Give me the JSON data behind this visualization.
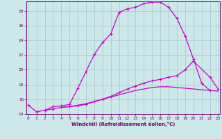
{
  "xlabel": "Windchill (Refroidissement éolien,°C)",
  "bg_color": "#cce8e8",
  "grid_color": "#aacccc",
  "line_color": "#cc00cc",
  "xmin": 0,
  "xmax": 23,
  "ymin": 14,
  "ymax": 29,
  "yticks": [
    14,
    16,
    18,
    20,
    22,
    24,
    26,
    28
  ],
  "xticks": [
    0,
    1,
    2,
    3,
    4,
    5,
    6,
    7,
    8,
    9,
    10,
    11,
    12,
    13,
    14,
    15,
    16,
    17,
    18,
    19,
    20,
    21,
    22,
    23
  ],
  "curve1_x": [
    0,
    1,
    2,
    3,
    4,
    5,
    6,
    7,
    8,
    9,
    10,
    11,
    12,
    13,
    14,
    15,
    16,
    17,
    18,
    19,
    20,
    21,
    22
  ],
  "curve1_y": [
    15.2,
    14.3,
    14.5,
    15.0,
    15.1,
    15.3,
    17.5,
    19.8,
    22.1,
    23.7,
    24.9,
    27.8,
    28.3,
    28.5,
    29.0,
    29.2,
    29.2,
    28.5,
    27.0,
    24.6,
    21.5,
    18.2,
    17.2
  ],
  "curve2_x": [
    2,
    3,
    4,
    5,
    6,
    7,
    8,
    9,
    10,
    11,
    12,
    13,
    14,
    15,
    16,
    17,
    18,
    19,
    20,
    22,
    23
  ],
  "curve2_y": [
    14.5,
    14.7,
    14.9,
    15.0,
    15.1,
    15.3,
    15.7,
    16.0,
    16.4,
    16.9,
    17.4,
    17.8,
    18.2,
    18.5,
    18.7,
    19.0,
    19.2,
    20.0,
    21.2,
    19.0,
    17.4
  ],
  "curve3_x": [
    4,
    5,
    6,
    7,
    8,
    9,
    10,
    11,
    12,
    13,
    14,
    15,
    16,
    17,
    18,
    19,
    20,
    21,
    22,
    23
  ],
  "curve3_y": [
    14.9,
    15.0,
    15.2,
    15.4,
    15.7,
    16.0,
    16.3,
    16.6,
    16.9,
    17.2,
    17.4,
    17.6,
    17.7,
    17.7,
    17.6,
    17.5,
    17.4,
    17.3,
    17.2,
    17.1
  ]
}
